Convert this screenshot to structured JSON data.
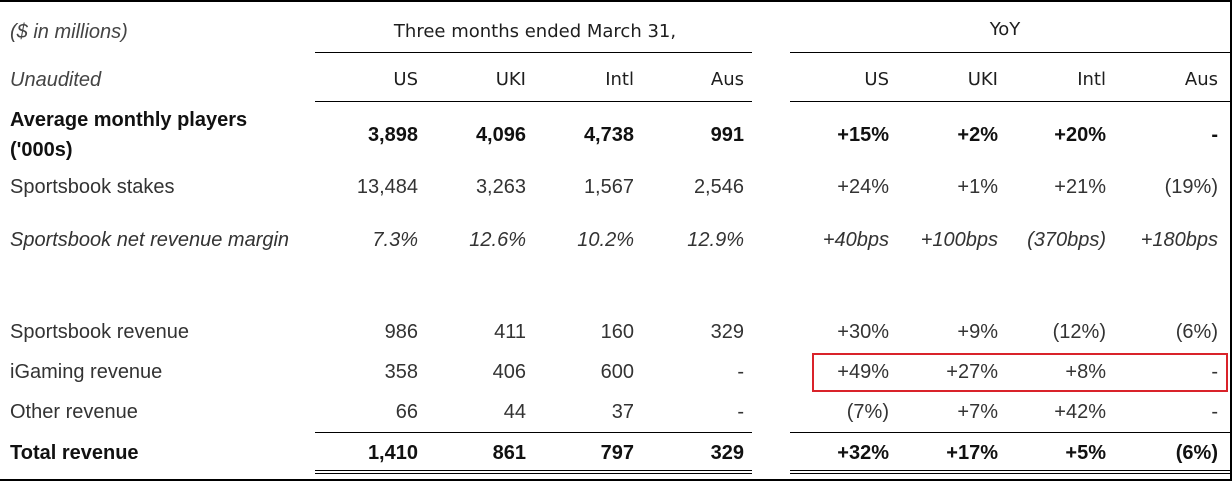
{
  "header": {
    "note": "($ in millions)",
    "period": "Three months ended March 31,",
    "yoy": "YoY",
    "subnote": "Unaudited",
    "columns": [
      "US",
      "UKI",
      "Intl",
      "Aus"
    ],
    "yoy_columns": [
      "US",
      "UKI",
      "Intl",
      "Aus"
    ]
  },
  "rows": [
    {
      "label": "Average monthly players ('000s)",
      "values": [
        "3,898",
        "4,096",
        "4,738",
        "991"
      ],
      "yoy": [
        "+15%",
        "+2%",
        "+20%",
        "-"
      ]
    },
    {
      "label": "Sportsbook stakes",
      "values": [
        "13,484",
        "3,263",
        "1,567",
        "2,546"
      ],
      "yoy": [
        "+24%",
        "+1%",
        "+21%",
        "(19%)"
      ]
    },
    {
      "label": "Sportsbook net revenue margin",
      "values": [
        "7.3%",
        "12.6%",
        "10.2%",
        "12.9%"
      ],
      "yoy": [
        "+40bps",
        "+100bps",
        "(370bps)",
        "+180bps"
      ]
    },
    {
      "label": "Sportsbook revenue",
      "values": [
        "986",
        "411",
        "160",
        "329"
      ],
      "yoy": [
        "+30%",
        "+9%",
        "(12%)",
        "(6%)"
      ]
    },
    {
      "label": "iGaming revenue",
      "values": [
        "358",
        "406",
        "600",
        "-"
      ],
      "yoy": [
        "+49%",
        "+27%",
        "+8%",
        "-"
      ]
    },
    {
      "label": "Other revenue",
      "values": [
        "66",
        "44",
        "37",
        "-"
      ],
      "yoy": [
        "(7%)",
        "+7%",
        "+42%",
        "-"
      ]
    },
    {
      "label": "Total revenue",
      "values": [
        "1,410",
        "861",
        "797",
        "329"
      ],
      "yoy": [
        "+32%",
        "+17%",
        "+5%",
        "(6%)"
      ]
    }
  ]
}
